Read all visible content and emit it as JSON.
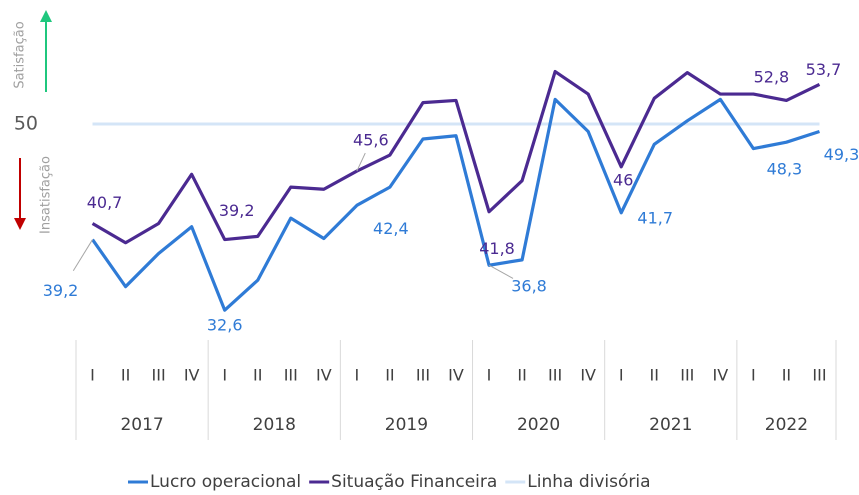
{
  "chart_data": {
    "type": "line",
    "groups": [
      {
        "label": "2017",
        "categories": [
          "I",
          "II",
          "III",
          "IV"
        ]
      },
      {
        "label": "2018",
        "categories": [
          "I",
          "II",
          "III",
          "IV"
        ]
      },
      {
        "label": "2019",
        "categories": [
          "I",
          "II",
          "III",
          "IV"
        ]
      },
      {
        "label": "2020",
        "categories": [
          "I",
          "II",
          "III",
          "IV"
        ]
      },
      {
        "label": "2021",
        "categories": [
          "I",
          "II",
          "III",
          "IV"
        ]
      },
      {
        "label": "2022",
        "categories": [
          "I",
          "II",
          "III"
        ]
      }
    ],
    "series": [
      {
        "name": "Lucro operacional",
        "color": "#2f7bd6",
        "values": [
          39.2,
          34.8,
          37.9,
          40.4,
          32.6,
          35.4,
          41.2,
          39.3,
          42.4,
          44.1,
          48.6,
          48.9,
          36.8,
          37.3,
          52.3,
          49.3,
          41.7,
          48.1,
          50.3,
          52.3,
          47.7,
          48.3,
          49.3
        ],
        "value_labels": [
          "39,2",
          null,
          null,
          null,
          "32,6",
          null,
          null,
          null,
          "42,4",
          null,
          null,
          null,
          "36,8",
          null,
          null,
          null,
          "41,7",
          null,
          null,
          null,
          null,
          "48,3",
          "49,3"
        ]
      },
      {
        "name": "Situação Financeira",
        "color": "#4b2a91",
        "values": [
          40.7,
          38.9,
          40.7,
          45.3,
          39.2,
          39.5,
          44.1,
          43.9,
          45.6,
          47.1,
          52.0,
          52.2,
          41.8,
          44.7,
          54.9,
          52.8,
          46,
          52.4,
          54.8,
          52.8,
          52.8,
          52.2,
          53.7
        ],
        "value_labels": [
          "40,7",
          null,
          null,
          null,
          "39,2",
          null,
          null,
          null,
          "45,6",
          null,
          null,
          null,
          "41,8",
          null,
          null,
          null,
          "46",
          null,
          null,
          null,
          "52,8",
          null,
          "53,7"
        ]
      },
      {
        "name": "Linha divisória",
        "color": "#d4e5f7",
        "values": [
          50,
          50,
          50,
          50,
          50,
          50,
          50,
          50,
          50,
          50,
          50,
          50,
          50,
          50,
          50,
          50,
          50,
          50,
          50,
          50,
          50,
          50,
          50
        ]
      }
    ],
    "ylim": [
      30,
      60
    ],
    "yticks": [
      50
    ],
    "annotations": [
      "Satisfação",
      "Insatisfação"
    ]
  }
}
